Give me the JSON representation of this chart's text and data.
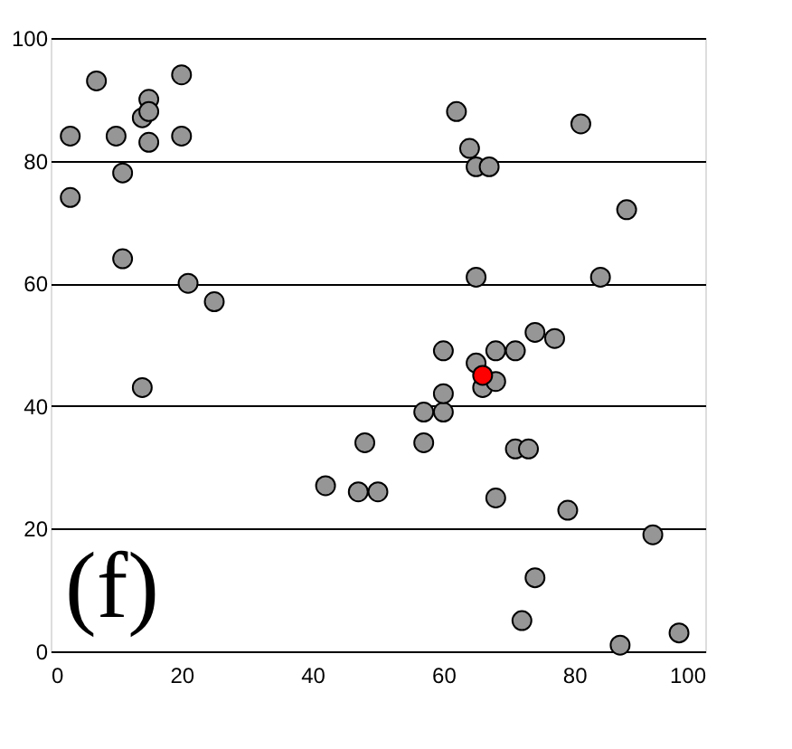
{
  "chart_data": {
    "type": "scatter",
    "marker": "circle",
    "grid": "y",
    "xlim": [
      0,
      100
    ],
    "xticks": [
      0,
      20,
      40,
      60,
      80,
      100
    ],
    "ylim": [
      0,
      100
    ],
    "yticks": [
      0,
      20,
      40,
      60,
      80,
      100
    ],
    "annotations": [
      "(f)"
    ],
    "series": [
      {
        "color": "#969696",
        "x": [
          3,
          3,
          7,
          10,
          11,
          11,
          14,
          15,
          15,
          15,
          14,
          20,
          20,
          21,
          25,
          62,
          64,
          65,
          67,
          81,
          88,
          65,
          84,
          60,
          65,
          68,
          71,
          74,
          77,
          66,
          68,
          57,
          60,
          60,
          57,
          48,
          42,
          47,
          50,
          68,
          71,
          73,
          79,
          92,
          74,
          72,
          87,
          96
        ],
        "values": [
          84,
          74,
          93,
          84,
          78,
          64,
          87,
          90,
          88,
          83,
          43,
          94,
          84,
          60,
          57,
          88,
          82,
          79,
          79,
          86,
          72,
          61,
          61,
          49,
          47,
          49,
          49,
          52,
          51,
          43,
          44,
          39,
          39,
          42,
          34,
          34,
          27,
          26,
          26,
          25,
          33,
          33,
          23,
          19,
          12,
          5,
          1,
          3
        ]
      },
      {
        "color": "#ff0000",
        "x": [
          66
        ],
        "values": [
          45
        ]
      }
    ]
  }
}
